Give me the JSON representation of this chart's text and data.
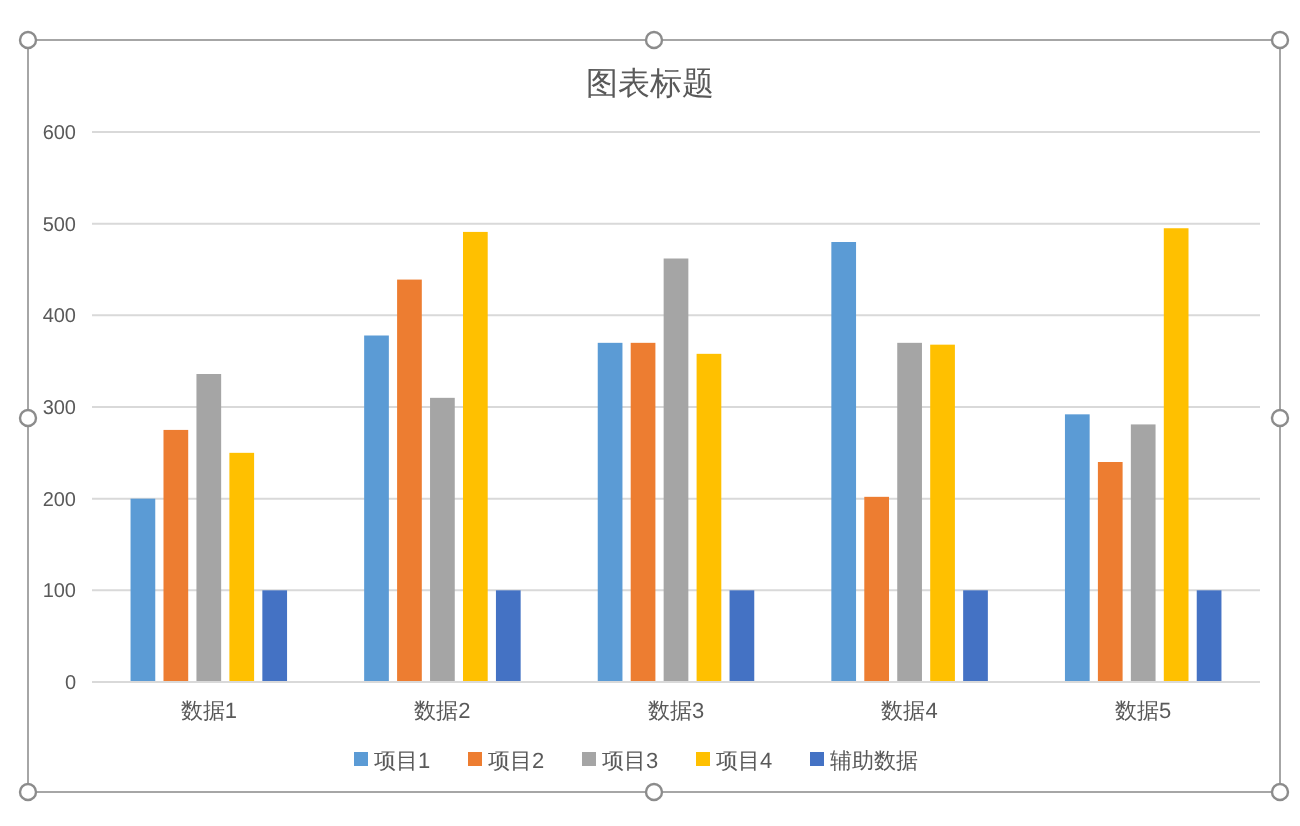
{
  "chart_data": {
    "type": "bar",
    "title": "图表标题",
    "categories": [
      "数据1",
      "数据2",
      "数据3",
      "数据4",
      "数据5"
    ],
    "series": [
      {
        "name": "项目1",
        "color": "#5b9bd5",
        "values": [
          200,
          378,
          370,
          480,
          292
        ]
      },
      {
        "name": "项目2",
        "color": "#ed7d31",
        "values": [
          275,
          439,
          370,
          202,
          240
        ]
      },
      {
        "name": "项目3",
        "color": "#a5a5a5",
        "values": [
          336,
          310,
          462,
          370,
          281
        ]
      },
      {
        "name": "项目4",
        "color": "#ffc000",
        "values": [
          250,
          491,
          358,
          368,
          495
        ]
      },
      {
        "name": "辅助数据",
        "color": "#4472c4",
        "values": [
          100,
          100,
          100,
          100,
          100
        ]
      }
    ],
    "ylim": [
      0,
      600
    ],
    "yticks": [
      0,
      100,
      200,
      300,
      400,
      500,
      600
    ],
    "grid": "y",
    "legend": "bottom"
  }
}
